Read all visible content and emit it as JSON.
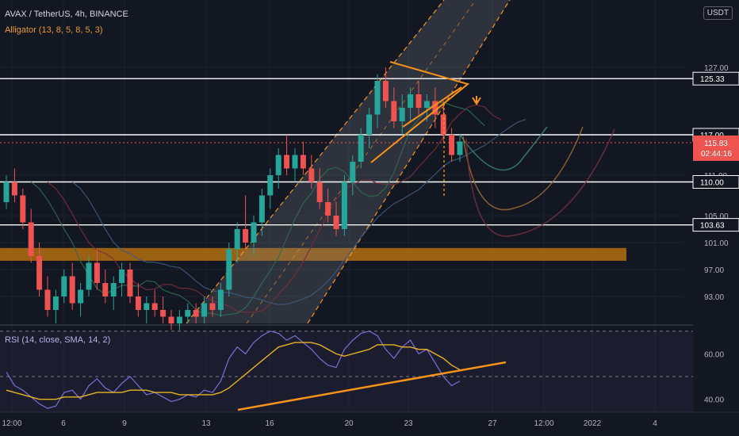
{
  "header": {
    "symbol_line": "AVAX / TetherUS, 4h, BINANCE",
    "indicator_line": "Alligator (13, 8, 5, 8, 5, 3)",
    "rsi_line": "RSI (14, close, SMA, 14, 2)"
  },
  "currency_badge": "USDT",
  "colors": {
    "up": "#26a69a",
    "down": "#ef5350",
    "annotation": "#f7931a",
    "rsi": "#7e6fd9",
    "rsi_ma": "#e6b422",
    "support_zone": "#b46f0f"
  },
  "chart_data": [
    {
      "type": "candlestick",
      "title": "AVAX / TetherUS, 4h, BINANCE",
      "ylim": [
        89,
        137
      ],
      "y_ticks": [
        93.0,
        97.0,
        101.0,
        105.0,
        111.0,
        117.0,
        127.0
      ],
      "x_tick_labels": [
        "12:00",
        "6",
        "9",
        "13",
        "16",
        "20",
        "23",
        "27",
        "12:00",
        "2022",
        "4"
      ],
      "price_tags": [
        {
          "value": 125.33,
          "label": "125.33",
          "style": "line"
        },
        {
          "value": 117.0,
          "label": "117.00",
          "style": "line"
        },
        {
          "value": 110.0,
          "label": "110.00",
          "style": "line"
        },
        {
          "value": 103.63,
          "label": "103.63",
          "style": "line"
        },
        {
          "value": 115.83,
          "label": "115.83",
          "style": "current",
          "countdown": "02:44:16"
        }
      ],
      "horizontal_lines": [
        125.33,
        117.0,
        110.0,
        103.63
      ],
      "support_zone": [
        98.3,
        100.2
      ],
      "candles": [
        [
          107,
          111,
          106,
          110
        ],
        [
          110,
          112,
          107,
          108
        ],
        [
          108,
          109,
          103,
          104
        ],
        [
          104,
          106,
          98,
          99
        ],
        [
          99,
          101,
          93,
          94
        ],
        [
          94,
          96,
          90,
          91
        ],
        [
          91,
          94,
          89,
          93
        ],
        [
          93,
          97,
          92,
          96
        ],
        [
          96,
          98,
          91,
          92
        ],
        [
          92,
          95,
          90,
          94
        ],
        [
          94,
          99,
          93,
          98
        ],
        [
          98,
          100,
          94,
          95
        ],
        [
          95,
          97,
          92,
          93
        ],
        [
          93,
          96,
          91,
          95
        ],
        [
          95,
          98,
          93,
          97
        ],
        [
          97,
          98,
          92,
          93
        ],
        [
          93,
          95,
          90,
          91
        ],
        [
          91,
          93,
          89,
          92
        ],
        [
          92,
          94,
          90,
          91
        ],
        [
          91,
          93,
          89,
          90
        ],
        [
          90,
          91,
          88,
          89
        ],
        [
          89,
          91,
          88,
          90
        ],
        [
          90,
          92,
          89,
          91
        ],
        [
          91,
          92,
          89,
          90
        ],
        [
          90,
          93,
          89,
          92
        ],
        [
          92,
          93,
          90,
          91
        ],
        [
          91,
          95,
          90,
          94
        ],
        [
          94,
          101,
          93,
          100
        ],
        [
          100,
          104,
          98,
          103
        ],
        [
          103,
          108,
          100,
          101
        ],
        [
          101,
          105,
          99,
          104
        ],
        [
          104,
          109,
          102,
          108
        ],
        [
          108,
          112,
          106,
          111
        ],
        [
          111,
          115,
          109,
          114
        ],
        [
          114,
          117,
          111,
          112
        ],
        [
          112,
          115,
          110,
          114
        ],
        [
          114,
          116,
          111,
          112
        ],
        [
          112,
          114,
          109,
          110
        ],
        [
          110,
          112,
          106,
          107
        ],
        [
          107,
          109,
          104,
          105
        ],
        [
          105,
          107,
          102,
          103
        ],
        [
          103,
          111,
          102,
          110
        ],
        [
          110,
          114,
          108,
          113
        ],
        [
          113,
          118,
          112,
          117
        ],
        [
          117,
          121,
          115,
          120
        ],
        [
          120,
          126,
          118,
          125
        ],
        [
          125,
          127,
          121,
          122
        ],
        [
          122,
          124,
          118,
          119
        ],
        [
          119,
          123,
          117,
          121
        ],
        [
          121,
          124,
          119,
          123
        ],
        [
          123,
          125,
          120,
          121
        ],
        [
          121,
          123,
          119,
          122
        ],
        [
          122,
          124,
          118,
          120
        ],
        [
          120,
          122,
          116,
          117
        ],
        [
          117,
          118,
          113,
          114
        ],
        [
          114,
          117,
          113,
          116
        ]
      ]
    },
    {
      "type": "line",
      "title": "RSI (14, close, SMA, 14, 2)",
      "ylim": [
        35,
        72
      ],
      "y_ticks": [
        40.0,
        60.0
      ],
      "series": [
        {
          "name": "RSI",
          "values": [
            52,
            46,
            44,
            41,
            38,
            36,
            37,
            43,
            44,
            40,
            46,
            49,
            45,
            43,
            47,
            50,
            46,
            42,
            43,
            41,
            39,
            40,
            42,
            41,
            44,
            43,
            48,
            58,
            63,
            60,
            65,
            68,
            70,
            69,
            66,
            68,
            65,
            62,
            58,
            55,
            54,
            62,
            66,
            69,
            70,
            68,
            62,
            58,
            63,
            66,
            60,
            62,
            56,
            50,
            46,
            48
          ]
        },
        {
          "name": "MA",
          "values": [
            44,
            43,
            42,
            41,
            40,
            40,
            40,
            41,
            41,
            41,
            42,
            43,
            43,
            43,
            43,
            44,
            44,
            44,
            43,
            43,
            43,
            42,
            42,
            42,
            42,
            42,
            43,
            45,
            48,
            51,
            54,
            57,
            60,
            63,
            64,
            65,
            65,
            65,
            64,
            62,
            60,
            59,
            60,
            61,
            62,
            64,
            64,
            64,
            63,
            63,
            62,
            62,
            60,
            58,
            55,
            53
          ]
        }
      ]
    }
  ]
}
